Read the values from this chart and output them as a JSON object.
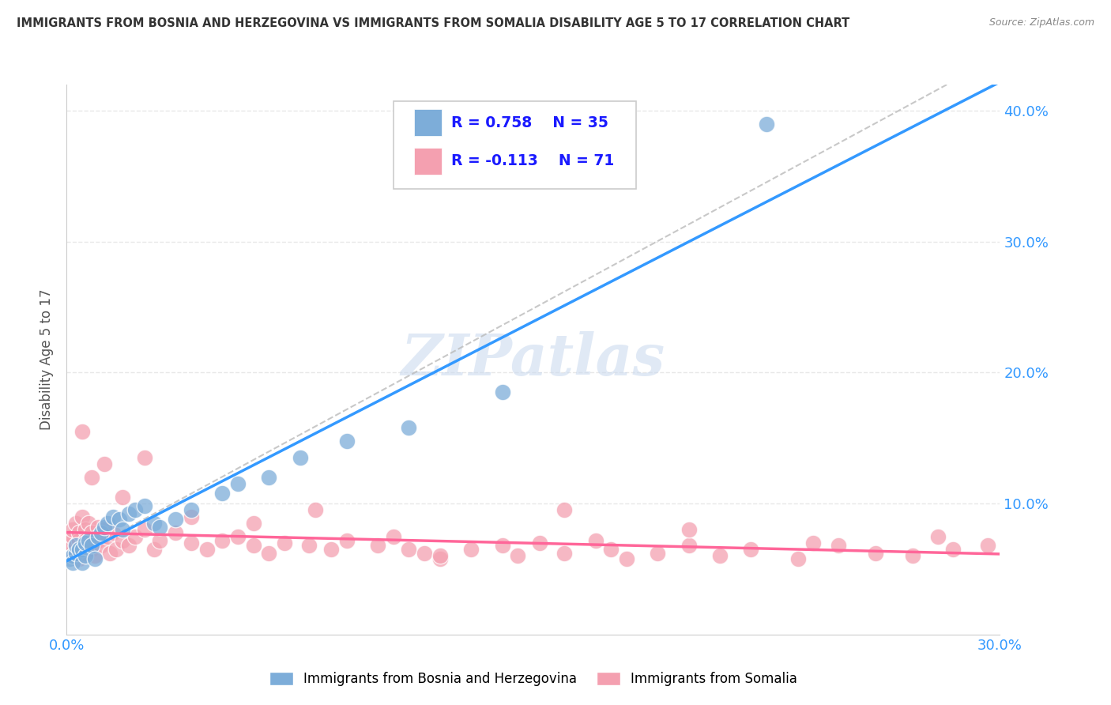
{
  "title": "IMMIGRANTS FROM BOSNIA AND HERZEGOVINA VS IMMIGRANTS FROM SOMALIA DISABILITY AGE 5 TO 17 CORRELATION CHART",
  "source": "Source: ZipAtlas.com",
  "ylabel": "Disability Age 5 to 17",
  "xlim": [
    0.0,
    0.3
  ],
  "ylim": [
    0.0,
    0.42
  ],
  "bosnia_color": "#7dadd9",
  "somalia_color": "#f4a0b0",
  "bosnia_R": 0.758,
  "bosnia_N": 35,
  "somalia_R": -0.113,
  "somalia_N": 71,
  "legend_bosnia": "Immigrants from Bosnia and Herzegovina",
  "legend_somalia": "Immigrants from Somalia",
  "bosnia_scatter_x": [
    0.001,
    0.002,
    0.002,
    0.003,
    0.003,
    0.004,
    0.005,
    0.005,
    0.006,
    0.006,
    0.007,
    0.008,
    0.009,
    0.01,
    0.011,
    0.012,
    0.013,
    0.015,
    0.017,
    0.018,
    0.02,
    0.022,
    0.025,
    0.028,
    0.03,
    0.035,
    0.04,
    0.05,
    0.055,
    0.065,
    0.075,
    0.09,
    0.11,
    0.14,
    0.225
  ],
  "bosnia_scatter_y": [
    0.058,
    0.06,
    0.055,
    0.062,
    0.068,
    0.065,
    0.065,
    0.055,
    0.06,
    0.07,
    0.072,
    0.068,
    0.058,
    0.075,
    0.078,
    0.082,
    0.085,
    0.09,
    0.088,
    0.08,
    0.092,
    0.095,
    0.098,
    0.085,
    0.082,
    0.088,
    0.095,
    0.108,
    0.115,
    0.12,
    0.135,
    0.148,
    0.158,
    0.185,
    0.39
  ],
  "somalia_scatter_x": [
    0.001,
    0.001,
    0.002,
    0.002,
    0.002,
    0.003,
    0.003,
    0.003,
    0.004,
    0.004,
    0.004,
    0.005,
    0.005,
    0.005,
    0.006,
    0.006,
    0.006,
    0.007,
    0.007,
    0.008,
    0.008,
    0.009,
    0.009,
    0.01,
    0.01,
    0.011,
    0.012,
    0.013,
    0.014,
    0.015,
    0.016,
    0.018,
    0.02,
    0.022,
    0.025,
    0.028,
    0.03,
    0.035,
    0.04,
    0.045,
    0.05,
    0.055,
    0.06,
    0.065,
    0.07,
    0.078,
    0.085,
    0.09,
    0.1,
    0.105,
    0.11,
    0.115,
    0.12,
    0.13,
    0.14,
    0.145,
    0.152,
    0.16,
    0.17,
    0.175,
    0.18,
    0.19,
    0.2,
    0.21,
    0.22,
    0.235,
    0.248,
    0.26,
    0.272,
    0.285,
    0.296
  ],
  "somalia_scatter_y": [
    0.065,
    0.07,
    0.06,
    0.075,
    0.08,
    0.068,
    0.062,
    0.085,
    0.072,
    0.078,
    0.058,
    0.065,
    0.09,
    0.068,
    0.08,
    0.062,
    0.072,
    0.085,
    0.068,
    0.078,
    0.065,
    0.07,
    0.06,
    0.072,
    0.082,
    0.068,
    0.08,
    0.075,
    0.062,
    0.078,
    0.065,
    0.072,
    0.068,
    0.075,
    0.08,
    0.065,
    0.072,
    0.078,
    0.07,
    0.065,
    0.072,
    0.075,
    0.068,
    0.062,
    0.07,
    0.068,
    0.065,
    0.072,
    0.068,
    0.075,
    0.065,
    0.062,
    0.058,
    0.065,
    0.068,
    0.06,
    0.07,
    0.062,
    0.072,
    0.065,
    0.058,
    0.062,
    0.068,
    0.06,
    0.065,
    0.058,
    0.068,
    0.062,
    0.06,
    0.065,
    0.068
  ],
  "somalia_extra_x": [
    0.005,
    0.008,
    0.012,
    0.018,
    0.025,
    0.04,
    0.06,
    0.08,
    0.12,
    0.16,
    0.2,
    0.24,
    0.28
  ],
  "somalia_extra_y": [
    0.155,
    0.12,
    0.13,
    0.105,
    0.135,
    0.09,
    0.085,
    0.095,
    0.06,
    0.095,
    0.08,
    0.07,
    0.075
  ],
  "watermark": "ZIPatlas",
  "background_color": "#ffffff",
  "grid_color": "#e8e8e8",
  "title_color": "#333333",
  "axis_label_color": "#555555",
  "tick_color": "#3399ff",
  "blue_line_color": "#3399ff",
  "pink_line_color": "#ff6699",
  "dashed_line_color": "#bbbbbb",
  "legend_r_color": "#1a1aff"
}
